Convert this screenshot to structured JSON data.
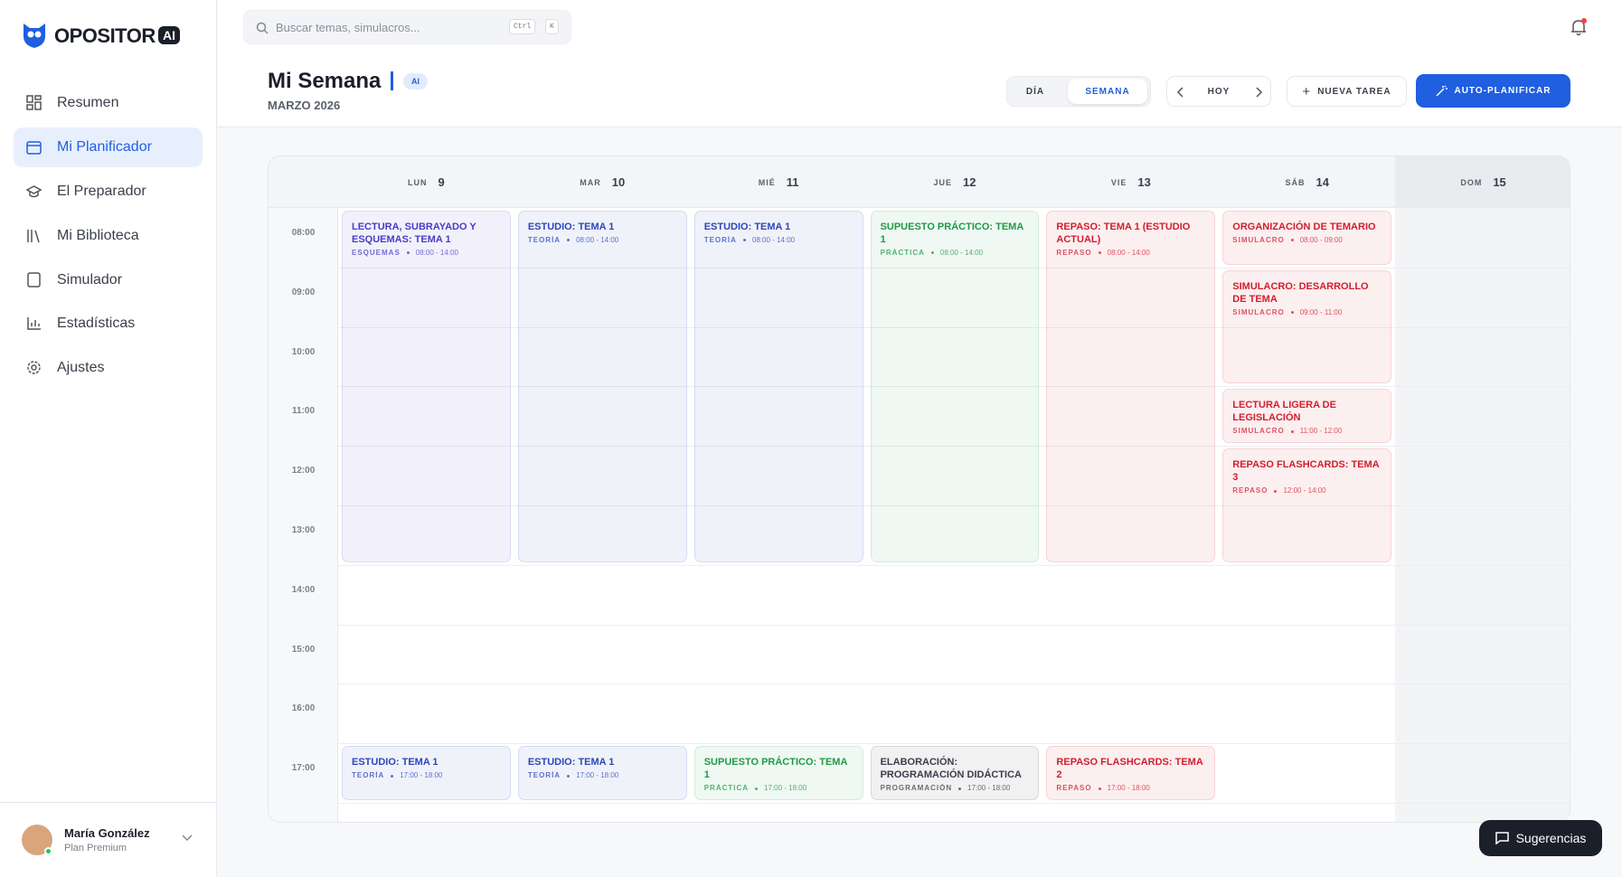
{
  "sidebar": {
    "logo": "OPOSITOR",
    "logo_badge": "AI",
    "nav": [
      "Resumen",
      "Mi Planificador",
      "El Preparador",
      "Mi Biblioteca",
      "Simulador",
      "Estadísticas",
      "Ajustes"
    ],
    "user": {
      "name": "María González",
      "plan": "Plan Premium"
    }
  },
  "topbar": {
    "search_placeholder": "Buscar temas, simulacros...",
    "shortcut": [
      "Ctrl",
      "K"
    ]
  },
  "header": {
    "title": "Mi Semana",
    "badge": "AI",
    "subtitle": "MARZO 2026",
    "view_toggle": [
      "DÍA",
      "SEMANA"
    ],
    "today": "HOY",
    "new_task": "NUEVA TAREA",
    "auto_plan": "AUTO-PLANIFICAR"
  },
  "calendar": {
    "hours": [
      "08:00",
      "09:00",
      "10:00",
      "11:00",
      "12:00",
      "13:00",
      "14:00",
      "15:00",
      "16:00",
      "17:00"
    ],
    "days": [
      {
        "name": "LUN",
        "date": "9",
        "events": [
          {
            "title": "LECTURA, SUBRAYADO Y ESQUEMAS: TEMA 1",
            "category": "ESQUEMAS",
            "time": "08:00 - 14:00",
            "color": "#4a3cc7"
          },
          {
            "title": "ESTUDIO: TEMA 1",
            "category": "TEORÍA",
            "time": "17:00 - 18:00",
            "color": "#2d46b9"
          }
        ]
      },
      {
        "name": "MAR",
        "date": "10",
        "events": [
          {
            "title": "ESTUDIO: TEMA 1",
            "category": "TEORÍA",
            "time": "08:00 - 14:00",
            "color": "#2d46b9"
          },
          {
            "title": "ESTUDIO: TEMA 1",
            "category": "TEORÍA",
            "time": "17:00 - 18:00",
            "color": "#2d46b9"
          }
        ]
      },
      {
        "name": "MIÉ",
        "date": "11",
        "events": [
          {
            "title": "ESTUDIO: TEMA 1",
            "category": "TEORÍA",
            "time": "08:00 - 14:00",
            "color": "#2d46b9"
          },
          {
            "title": "SUPUESTO PRÁCTICO: TEMA 1",
            "category": "PRÁCTICA",
            "time": "17:00 - 18:00",
            "color": "#1f9a48"
          }
        ]
      },
      {
        "name": "JUE",
        "date": "12",
        "events": [
          {
            "title": "SUPUESTO PRÁCTICO: TEMA 1",
            "category": "PRÁCTICA",
            "time": "08:00 - 14:00",
            "color": "#1f9a48"
          },
          {
            "title": "ELABORACIÓN: PROGRAMACIÓN DIDÁCTICA",
            "category": "PROGRAMACIÓN",
            "time": "17:00 - 18:00",
            "color": "#3a3f4a"
          }
        ]
      },
      {
        "name": "VIE",
        "date": "13",
        "events": [
          {
            "title": "REPASO: TEMA 1 (ESTUDIO ACTUAL)",
            "category": "REPASO",
            "time": "08:00 - 14:00",
            "color": "#d01f2e"
          },
          {
            "title": "REPASO FLASHCARDS: TEMA 2",
            "category": "REPASO",
            "time": "17:00 - 18:00",
            "color": "#d01f2e"
          }
        ]
      },
      {
        "name": "SÁB",
        "date": "14",
        "events": [
          {
            "title": "ORGANIZACIÓN DE TEMARIO",
            "category": "SIMULACRO",
            "time": "08:00 - 09:00",
            "color": "#d01f2e"
          },
          {
            "title": "SIMULACRO: DESARROLLO DE TEMA",
            "category": "SIMULACRO",
            "time": "09:00 - 11:00",
            "color": "#d01f2e"
          },
          {
            "title": "LECTURA LIGERA DE LEGISLACIÓN",
            "category": "SIMULACRO",
            "time": "11:00 - 12:00",
            "color": "#d01f2e"
          },
          {
            "title": "REPASO FLASHCARDS: TEMA 3",
            "category": "REPASO",
            "time": "12:00 - 14:00",
            "color": "#d01f2e"
          }
        ]
      },
      {
        "name": "DOM",
        "date": "15",
        "events": []
      }
    ]
  },
  "feedback": "Sugerencias"
}
